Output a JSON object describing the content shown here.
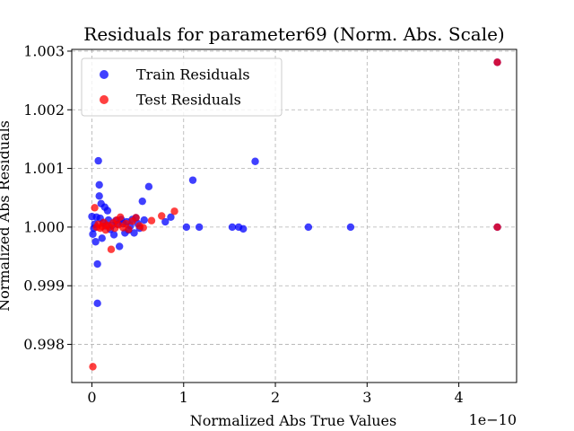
{
  "chart_data": {
    "type": "scatter",
    "title": "Residuals for parameter69 (Norm. Abs. Scale)",
    "xlabel": "Normalized Abs True Values",
    "ylabel": "Normalized Abs Residuals",
    "x_offset_label": "1e−10",
    "x_scale_factor": 1e-10,
    "xlim": [
      -0.22,
      4.63
    ],
    "ylim": [
      0.99735,
      1.00303
    ],
    "xticks": [
      0,
      1,
      2,
      3,
      4
    ],
    "xtick_labels": [
      "0",
      "1",
      "2",
      "3",
      "4"
    ],
    "yticks": [
      0.998,
      0.999,
      1.0,
      1.001,
      1.002,
      1.003
    ],
    "ytick_labels": [
      "0.998",
      "0.999",
      "1.000",
      "1.001",
      "1.002",
      "1.003"
    ],
    "grid": true,
    "legend_position": "top-left",
    "series": [
      {
        "name": "Train Residuals",
        "color": "#0000ff",
        "points": [
          [
            0.0,
            1.00018
          ],
          [
            0.01,
            0.99988
          ],
          [
            0.02,
            0.99998
          ],
          [
            0.03,
            1.00005
          ],
          [
            0.04,
            0.99975
          ],
          [
            0.05,
            1.00017
          ],
          [
            0.06,
            0.9987
          ],
          [
            0.06,
            0.99937
          ],
          [
            0.07,
            1.00113
          ],
          [
            0.08,
            1.00072
          ],
          [
            0.08,
            1.00053
          ],
          [
            0.09,
            1.00015
          ],
          [
            0.1,
            1.0004
          ],
          [
            0.11,
            0.99981
          ],
          [
            0.12,
            1.00007
          ],
          [
            0.14,
            1.00034
          ],
          [
            0.15,
            1.00002
          ],
          [
            0.17,
            1.00028
          ],
          [
            0.18,
            1.00012
          ],
          [
            0.2,
            0.99996
          ],
          [
            0.22,
            1.00003
          ],
          [
            0.24,
            0.99987
          ],
          [
            0.26,
            1.00011
          ],
          [
            0.28,
            1.00005
          ],
          [
            0.3,
            0.99967
          ],
          [
            0.32,
            1.00013
          ],
          [
            0.34,
            1.00006
          ],
          [
            0.36,
            0.9999
          ],
          [
            0.38,
            1.00009
          ],
          [
            0.4,
            0.99995
          ],
          [
            0.42,
            1.00002
          ],
          [
            0.44,
            1.00013
          ],
          [
            0.46,
            0.9999
          ],
          [
            0.48,
            1.00016
          ],
          [
            0.5,
            1.00006
          ],
          [
            0.52,
            0.99998
          ],
          [
            0.55,
            1.00044
          ],
          [
            0.57,
            1.00012
          ],
          [
            0.62,
            1.00069
          ],
          [
            0.8,
            1.00009
          ],
          [
            0.86,
            1.00017
          ],
          [
            1.1,
            1.0008
          ],
          [
            1.03,
            1.0
          ],
          [
            1.17,
            1.0
          ],
          [
            1.53,
            1.0
          ],
          [
            1.6,
            1.0
          ],
          [
            1.65,
            0.99997
          ],
          [
            1.78,
            1.00112
          ],
          [
            2.36,
            1.0
          ],
          [
            2.82,
            1.0
          ],
          [
            4.42,
            1.0
          ],
          [
            4.42,
            1.00281
          ]
        ]
      },
      {
        "name": "Test Residuals",
        "color": "#ff0000",
        "points": [
          [
            0.01,
            0.99762
          ],
          [
            0.03,
            1.00033
          ],
          [
            0.05,
            1.0
          ],
          [
            0.07,
            1.00005
          ],
          [
            0.09,
            0.99998
          ],
          [
            0.11,
            1.00001
          ],
          [
            0.13,
            1.00008
          ],
          [
            0.15,
            0.99995
          ],
          [
            0.17,
            1.00003
          ],
          [
            0.19,
            1.0
          ],
          [
            0.21,
            0.99962
          ],
          [
            0.23,
            1.00007
          ],
          [
            0.25,
            0.99998
          ],
          [
            0.27,
            1.00012
          ],
          [
            0.29,
            1.00004
          ],
          [
            0.31,
            1.00017
          ],
          [
            0.34,
            0.99999
          ],
          [
            0.37,
            1.00006
          ],
          [
            0.4,
            0.99996
          ],
          [
            0.44,
            1.0001
          ],
          [
            0.48,
            1.00016
          ],
          [
            0.52,
            1.00002
          ],
          [
            0.56,
            0.99999
          ],
          [
            0.65,
            1.00011
          ],
          [
            0.76,
            1.00019
          ],
          [
            0.9,
            1.00027
          ],
          [
            4.42,
            1.0
          ],
          [
            4.42,
            1.00281
          ]
        ]
      }
    ]
  }
}
